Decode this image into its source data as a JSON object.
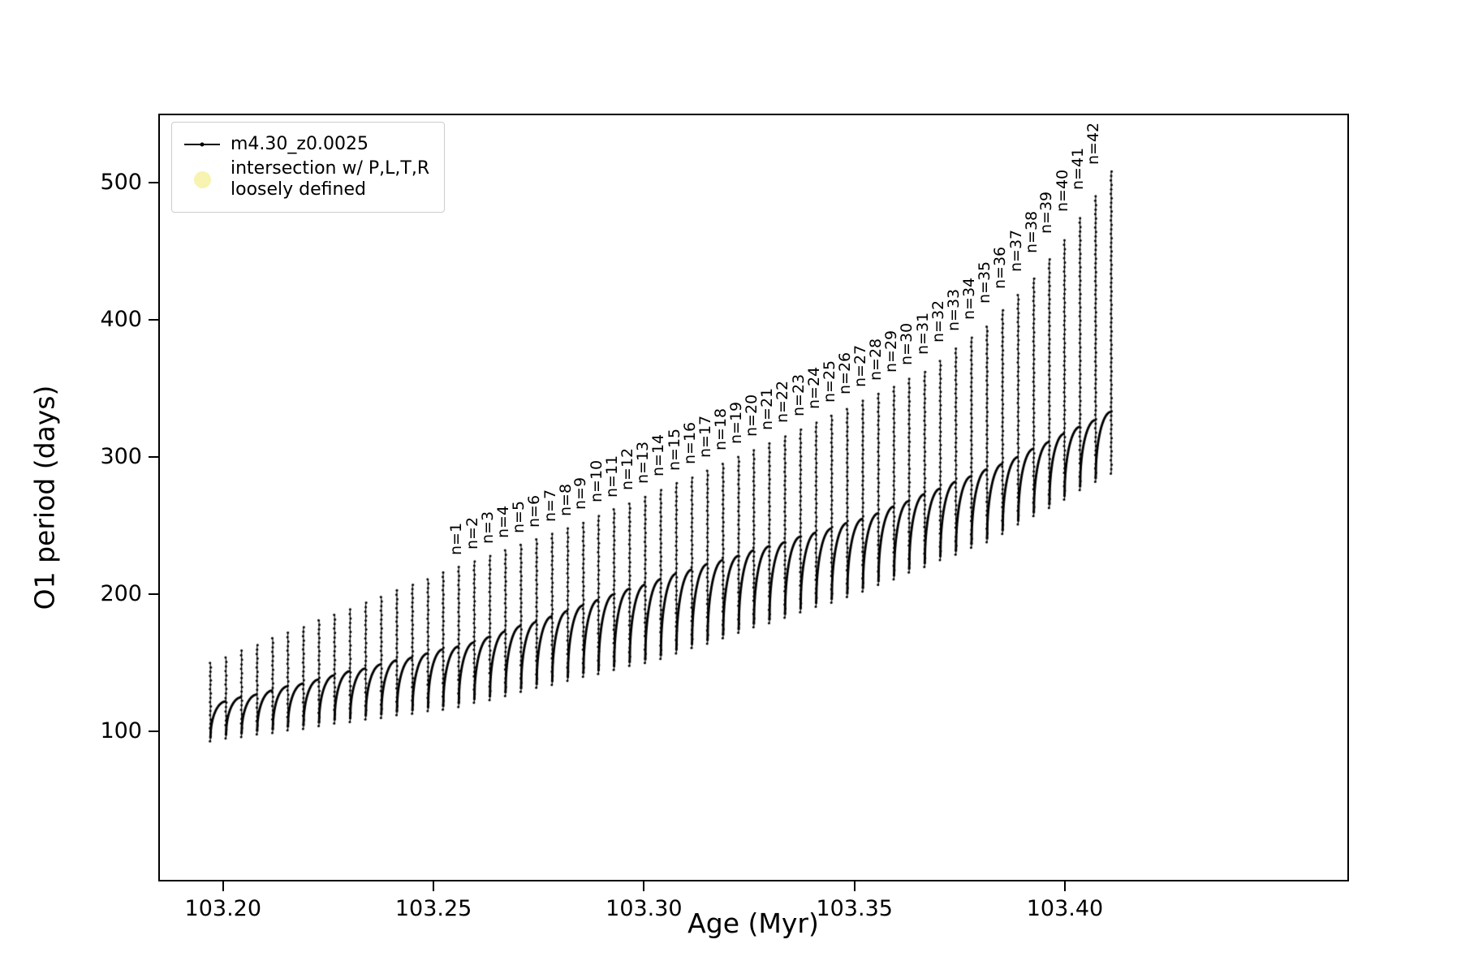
{
  "figure": {
    "background": "#ffffff"
  },
  "chart_data": {
    "type": "line",
    "title": "",
    "xlabel": "Age (Myr)",
    "ylabel": "O1 period (days)",
    "grid": false,
    "legend_position": "upper left",
    "legend": [
      "m4.30_z0.0025",
      "intersection w/ P,L,T,R\nloosely defined"
    ],
    "series_marker": ".",
    "line_color": "#000000",
    "intersection_marker_color": "#f7f3b0",
    "xlim": [
      103.185,
      103.4671
    ],
    "ylim": [
      -8,
      549
    ],
    "xticks": {
      "values": [
        103.2,
        103.25,
        103.3,
        103.35,
        103.4
      ],
      "labels": [
        "103.20",
        "103.25",
        "103.30",
        "103.35",
        "103.40"
      ]
    },
    "yticks": {
      "values": [
        100,
        200,
        300,
        400,
        500
      ],
      "labels": [
        "100",
        "200",
        "300",
        "400",
        "500"
      ]
    },
    "cycles": {
      "comment": "one entry per thermal-pulse cycle: spike x position (Myr), spike tip (days), smooth-arc top (days), arc bottom (days)",
      "x": [
        103.197,
        103.2007,
        103.2044,
        103.2081,
        103.2118,
        103.2154,
        103.2191,
        103.2228,
        103.2265,
        103.2302,
        103.2339,
        103.2376,
        103.2413,
        103.245,
        103.2487,
        103.2523,
        103.256,
        103.2597,
        103.2634,
        103.2671,
        103.2708,
        103.2745,
        103.2782,
        103.2819,
        103.2856,
        103.2892,
        103.2929,
        103.2966,
        103.3003,
        103.304,
        103.3077,
        103.3114,
        103.3151,
        103.3188,
        103.3225,
        103.3261,
        103.3298,
        103.3335,
        103.3372,
        103.3409,
        103.3446,
        103.3483,
        103.352,
        103.3557,
        103.3594,
        103.363,
        103.3667,
        103.3704,
        103.3741,
        103.3778,
        103.3815,
        103.3852,
        103.3889,
        103.3926,
        103.3963,
        103.3999,
        103.4036,
        103.4073,
        103.411
      ],
      "spike_top": [
        150,
        154,
        159,
        163,
        168,
        172,
        176,
        181,
        185,
        189,
        194,
        198,
        203,
        207,
        211,
        216,
        220,
        224,
        228,
        232,
        236,
        240,
        244,
        248,
        252,
        257,
        262,
        266,
        271,
        276,
        281,
        285,
        290,
        295,
        300,
        305,
        310,
        315,
        320,
        325,
        330,
        335,
        341,
        346,
        351,
        357,
        362,
        370,
        379,
        387,
        395,
        407,
        418,
        430,
        444,
        458,
        474,
        490,
        508
      ],
      "arc_top": [
        122,
        125,
        127,
        130,
        133,
        135,
        138,
        141,
        144,
        146,
        149,
        152,
        154,
        157,
        160,
        162,
        165,
        169,
        173,
        177,
        180,
        184,
        188,
        192,
        196,
        200,
        204,
        207,
        211,
        215,
        218,
        222,
        225,
        228,
        232,
        235,
        238,
        242,
        245,
        248,
        252,
        255,
        259,
        264,
        268,
        273,
        277,
        282,
        286,
        291,
        295,
        300,
        306,
        311,
        317,
        322,
        327,
        333,
        338
      ],
      "arc_bottom": [
        95,
        97,
        98,
        100,
        101,
        103,
        104,
        106,
        108,
        109,
        111,
        112,
        114,
        115,
        117,
        118,
        120,
        123,
        125,
        128,
        131,
        134,
        136,
        139,
        142,
        144,
        147,
        150,
        152,
        155,
        159,
        163,
        166,
        170,
        174,
        178,
        181,
        185,
        189,
        193,
        196,
        200,
        204,
        209,
        213,
        218,
        222,
        227,
        231,
        236,
        240,
        246,
        253,
        259,
        265,
        271,
        278,
        284,
        290
      ]
    },
    "annotation_start_cycle": 17,
    "annotation_labels": [
      "n=1",
      "n=2",
      "n=3",
      "n=4",
      "n=5",
      "n=6",
      "n=7",
      "n=8",
      "n=9",
      "n=10",
      "n=11",
      "n=12",
      "n=13",
      "n=14",
      "n=15",
      "n=16",
      "n=17",
      "n=18",
      "n=19",
      "n=20",
      "n=21",
      "n=22",
      "n=23",
      "n=24",
      "n=25",
      "n=26",
      "n=27",
      "n=28",
      "n=29",
      "n=30",
      "n=31",
      "n=32",
      "n=33",
      "n=34",
      "n=35",
      "n=36",
      "n=37",
      "n=38",
      "n=39",
      "n=40",
      "n=41",
      "n=42"
    ]
  }
}
